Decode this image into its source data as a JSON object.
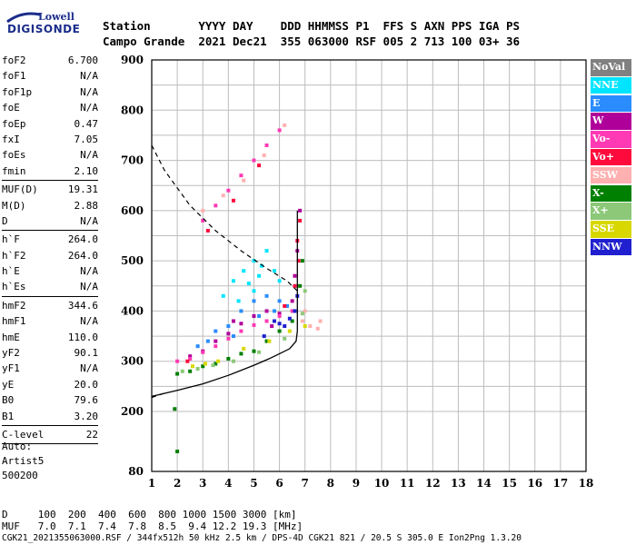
{
  "logo": {
    "line1": "Lowell",
    "line2": "DIGISONDE"
  },
  "header": {
    "row1": "Station       YYYY DAY    DDD HHMMSS P1  FFS S AXN PPS IGA PS",
    "row2": "Campo Grande  2021 Dec21  355 063000 RSF 005 2 713 100 03+ 36"
  },
  "params": [
    {
      "k": "foF2",
      "v": "6.700"
    },
    {
      "k": "foF1",
      "v": "N/A"
    },
    {
      "k": "foF1p",
      "v": "N/A"
    },
    {
      "k": "foE",
      "v": "N/A"
    },
    {
      "k": "foEp",
      "v": "0.47"
    },
    {
      "k": "fxI",
      "v": "7.05"
    },
    {
      "k": "foEs",
      "v": "N/A"
    },
    {
      "k": "fmin",
      "v": "2.10"
    },
    {
      "k": "MUF(D)",
      "v": "19.31"
    },
    {
      "k": "M(D)",
      "v": "2.88"
    },
    {
      "k": "D",
      "v": "N/A"
    },
    {
      "k": "h`F",
      "v": "264.0"
    },
    {
      "k": "h`F2",
      "v": "264.0"
    },
    {
      "k": "h`E",
      "v": "N/A"
    },
    {
      "k": "h`Es",
      "v": "N/A"
    },
    {
      "k": "hmF2",
      "v": "344.6"
    },
    {
      "k": "hmF1",
      "v": "N/A"
    },
    {
      "k": "hmE",
      "v": "110.0"
    },
    {
      "k": "yF2",
      "v": "90.1"
    },
    {
      "k": "yF1",
      "v": "N/A"
    },
    {
      "k": "yE",
      "v": "20.0"
    },
    {
      "k": "B0",
      "v": "79.6"
    },
    {
      "k": "B1",
      "v": "3.20"
    },
    {
      "k": "C-level",
      "v": "22"
    }
  ],
  "auto": {
    "line1": "Auto:",
    "line2": "Artist5",
    "line3": "500200"
  },
  "legend": [
    {
      "label": "NoVal",
      "bg": "#808080",
      "fg": "#ffffff"
    },
    {
      "label": "NNE",
      "bg": "#00e5ff",
      "fg": "#ffffff"
    },
    {
      "label": "E",
      "bg": "#2a8cff",
      "fg": "#ffffff"
    },
    {
      "label": "W",
      "bg": "#b0009a",
      "fg": "#ffffff"
    },
    {
      "label": "Vo-",
      "bg": "#ff3ab4",
      "fg": "#ffffff"
    },
    {
      "label": "Vo+",
      "bg": "#ff0a3c",
      "fg": "#ffffff"
    },
    {
      "label": "SSW",
      "bg": "#ffb0b0",
      "fg": "#ffffff"
    },
    {
      "label": "X-",
      "bg": "#008000",
      "fg": "#ffffff"
    },
    {
      "label": "X+",
      "bg": "#8cc878",
      "fg": "#ffffff"
    },
    {
      "label": "SSE",
      "bg": "#d8d800",
      "fg": "#ffffff"
    },
    {
      "label": "NNW",
      "bg": "#2020d0",
      "fg": "#ffffff"
    }
  ],
  "muf_table": {
    "row1": "D     100  200  400  600  800 1000 1500 3000 [km]",
    "row2": "MUF   7.0  7.1  7.4  7.8  8.5  9.4 12.2 19.3 [MHz]"
  },
  "footer": "CGK21_2021355063000.RSF / 344fx512h 50 kHz 2.5 km / DPS-4D CGK21 821 / 20.5 S 305.0 E Ion2Png 1.3.20",
  "chart_data": {
    "type": "scatter",
    "title": "",
    "xlabel": "",
    "ylabel": "",
    "xlim": [
      1,
      18
    ],
    "ylim": [
      80,
      900
    ],
    "x_ticks": [
      1,
      2,
      3,
      4,
      5,
      6,
      7,
      8,
      9,
      10,
      11,
      12,
      13,
      14,
      15,
      16,
      17,
      18
    ],
    "y_ticks": [
      80,
      200,
      300,
      400,
      500,
      600,
      700,
      800,
      900
    ],
    "grid": true,
    "series": [
      {
        "name": "NNE",
        "color": "#00e5ff",
        "points": [
          [
            3.8,
            430
          ],
          [
            4.2,
            460
          ],
          [
            4.6,
            480
          ],
          [
            5.0,
            500
          ],
          [
            5.2,
            470
          ],
          [
            5.5,
            520
          ],
          [
            5.0,
            440
          ],
          [
            4.4,
            420
          ],
          [
            5.8,
            480
          ],
          [
            6.0,
            460
          ],
          [
            4.8,
            455
          ],
          [
            5.3,
            490
          ]
        ]
      },
      {
        "name": "E",
        "color": "#2a8cff",
        "points": [
          [
            3.5,
            360
          ],
          [
            4.0,
            370
          ],
          [
            4.5,
            400
          ],
          [
            5.0,
            420
          ],
          [
            5.5,
            430
          ],
          [
            6.0,
            420
          ],
          [
            6.3,
            410
          ],
          [
            3.2,
            340
          ],
          [
            4.2,
            350
          ],
          [
            5.2,
            390
          ],
          [
            5.8,
            400
          ],
          [
            2.8,
            330
          ]
        ]
      },
      {
        "name": "W",
        "color": "#b0009a",
        "points": [
          [
            2.5,
            310
          ],
          [
            3.0,
            320
          ],
          [
            3.5,
            340
          ],
          [
            4.0,
            355
          ],
          [
            4.5,
            375
          ],
          [
            5.0,
            390
          ],
          [
            5.5,
            400
          ],
          [
            6.0,
            395
          ],
          [
            6.5,
            420
          ],
          [
            6.7,
            520
          ],
          [
            6.8,
            600
          ],
          [
            6.6,
            470
          ],
          [
            4.2,
            380
          ],
          [
            5.7,
            370
          ]
        ]
      },
      {
        "name": "Vo-",
        "color": "#ff3ab4",
        "points": [
          [
            2.0,
            300
          ],
          [
            2.5,
            305
          ],
          [
            3.0,
            318
          ],
          [
            3.5,
            330
          ],
          [
            4.0,
            345
          ],
          [
            4.5,
            360
          ],
          [
            5.0,
            372
          ],
          [
            5.5,
            380
          ],
          [
            6.0,
            390
          ],
          [
            6.5,
            400
          ],
          [
            3.0,
            580
          ],
          [
            3.5,
            610
          ],
          [
            4.0,
            640
          ],
          [
            4.5,
            670
          ],
          [
            5.0,
            700
          ],
          [
            5.5,
            730
          ],
          [
            6.0,
            760
          ]
        ]
      },
      {
        "name": "Vo+",
        "color": "#ff0a3c",
        "points": [
          [
            6.7,
            540
          ],
          [
            6.8,
            580
          ],
          [
            6.75,
            500
          ],
          [
            6.6,
            450
          ],
          [
            2.4,
            300
          ],
          [
            6.2,
            410
          ],
          [
            3.2,
            560
          ],
          [
            4.2,
            620
          ],
          [
            5.2,
            690
          ]
        ]
      },
      {
        "name": "SSW",
        "color": "#ffb0b0",
        "points": [
          [
            6.9,
            380
          ],
          [
            7.2,
            370
          ],
          [
            7.5,
            365
          ],
          [
            7.0,
            400
          ],
          [
            3.0,
            600
          ],
          [
            3.8,
            630
          ],
          [
            4.6,
            660
          ],
          [
            5.4,
            710
          ],
          [
            6.2,
            770
          ],
          [
            7.6,
            380
          ]
        ]
      },
      {
        "name": "X-",
        "color": "#008000",
        "points": [
          [
            2.0,
            275
          ],
          [
            2.5,
            280
          ],
          [
            3.0,
            290
          ],
          [
            3.5,
            295
          ],
          [
            4.0,
            305
          ],
          [
            4.5,
            315
          ],
          [
            5.0,
            320
          ],
          [
            5.5,
            340
          ],
          [
            6.0,
            360
          ],
          [
            6.5,
            380
          ],
          [
            6.8,
            450
          ],
          [
            1.9,
            205
          ],
          [
            2.0,
            120
          ],
          [
            6.9,
            500
          ]
        ]
      },
      {
        "name": "X+",
        "color": "#8cc878",
        "points": [
          [
            2.2,
            280
          ],
          [
            2.8,
            285
          ],
          [
            3.4,
            292
          ],
          [
            4.2,
            300
          ],
          [
            5.2,
            318
          ],
          [
            6.2,
            345
          ],
          [
            6.9,
            395
          ],
          [
            7.0,
            440
          ]
        ]
      },
      {
        "name": "SSE",
        "color": "#d8d800",
        "points": [
          [
            2.6,
            290
          ],
          [
            3.6,
            300
          ],
          [
            4.6,
            325
          ],
          [
            5.6,
            340
          ],
          [
            6.4,
            360
          ],
          [
            7.0,
            370
          ],
          [
            3.1,
            295
          ]
        ]
      },
      {
        "name": "NNW",
        "color": "#2020d0",
        "points": [
          [
            5.8,
            380
          ],
          [
            6.0,
            375
          ],
          [
            6.2,
            370
          ],
          [
            6.4,
            385
          ],
          [
            6.6,
            400
          ],
          [
            5.4,
            350
          ],
          [
            6.7,
            430
          ]
        ]
      }
    ],
    "profile_solid": [
      [
        1.0,
        230
      ],
      [
        2.0,
        242
      ],
      [
        3.0,
        255
      ],
      [
        4.0,
        272
      ],
      [
        5.0,
        292
      ],
      [
        5.6,
        305
      ],
      [
        6.0,
        315
      ],
      [
        6.4,
        325
      ],
      [
        6.65,
        340
      ],
      [
        6.7,
        360
      ],
      [
        6.7,
        600
      ]
    ],
    "profile_dashed": [
      [
        1.0,
        228
      ],
      [
        1.5,
        236
      ],
      [
        1.0,
        730
      ]
    ],
    "profile_dashed_upper": [
      [
        1.0,
        730
      ],
      [
        1.5,
        680
      ],
      [
        2.5,
        610
      ],
      [
        3.5,
        560
      ],
      [
        4.5,
        520
      ],
      [
        5.5,
        485
      ],
      [
        6.3,
        460
      ],
      [
        6.7,
        440
      ]
    ]
  }
}
